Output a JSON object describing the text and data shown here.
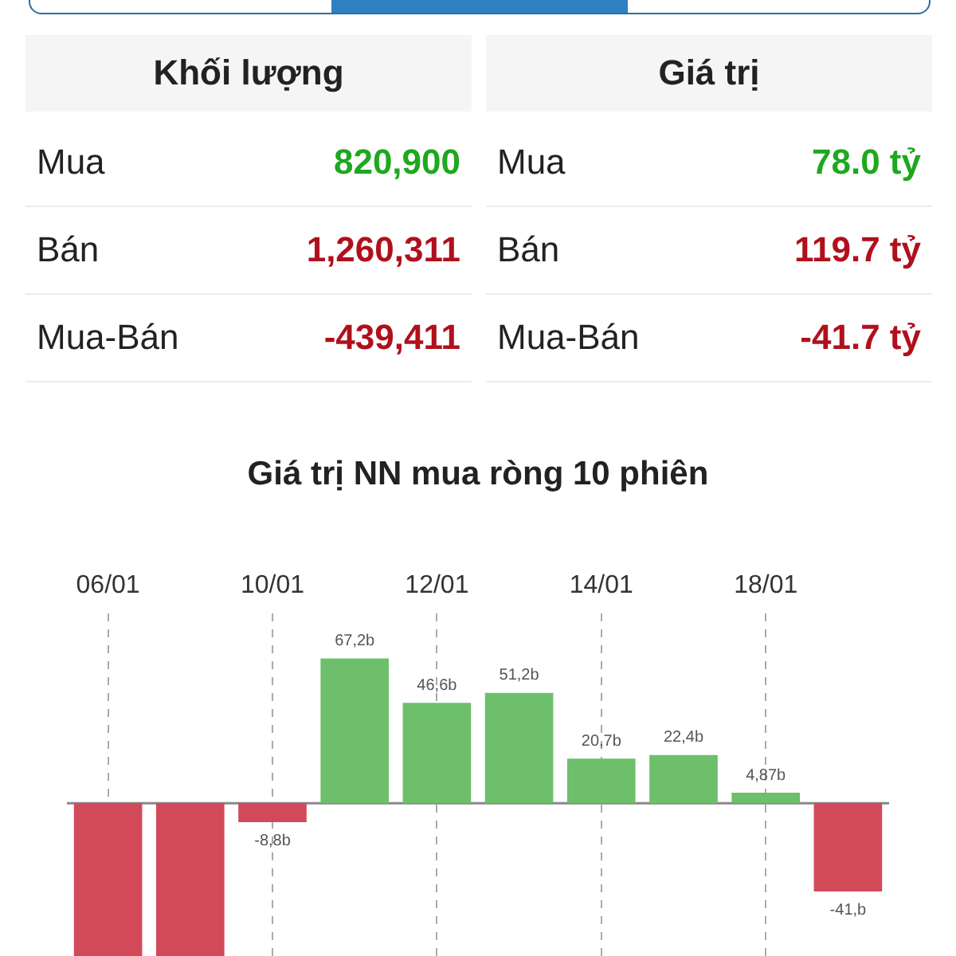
{
  "chart_data": [
    {
      "type": "other",
      "categories": [
        "Mua",
        "Bán",
        "Mua-Bán"
      ],
      "series": [
        {
          "name": "Khối lượng",
          "values": [
            820900,
            1260311,
            -439411
          ],
          "value_labels": [
            "820,900",
            "1,260,311",
            "-439,411"
          ],
          "colors": [
            "#1ea81e",
            "#b0101c",
            "#b0101c"
          ]
        },
        {
          "name": "Giá trị",
          "values": [
            78.0,
            119.7,
            -41.7
          ],
          "value_labels": [
            "78.0 tỷ",
            "119.7 tỷ",
            "-41.7 tỷ"
          ],
          "colors": [
            "#1ea81e",
            "#b0101c",
            "#b0101c"
          ]
        }
      ]
    },
    {
      "type": "bar",
      "title": "Giá trị NN mua ròng 10 phiên",
      "categories": [
        "06/01",
        null,
        "10/01",
        null,
        "12/01",
        null,
        "14/01",
        null,
        "18/01",
        null
      ],
      "values": [
        -71,
        -71,
        -8.8,
        67.2,
        46.6,
        51.2,
        20.7,
        22.4,
        4.87,
        -41
      ],
      "colors": [
        "#d24a5a",
        "#d24a5a",
        "#d24a5a",
        "#6dbf6b",
        "#6dbf6b",
        "#6dbf6b",
        "#6dbf6b",
        "#6dbf6b",
        "#6dbf6b",
        "#d24a5a"
      ],
      "value_labels": [
        null,
        null,
        "-8,8b",
        "67,2b",
        "46,6b",
        "51,2b",
        "20,7b",
        "22,4b",
        "4,87b",
        "-41,b"
      ],
      "ylim": [
        -71,
        88
      ],
      "grid": "x",
      "tick_labels": "x",
      "ref_lines": [
        {
          "axis": "y",
          "value": 0,
          "color": "#888888"
        }
      ]
    }
  ]
}
